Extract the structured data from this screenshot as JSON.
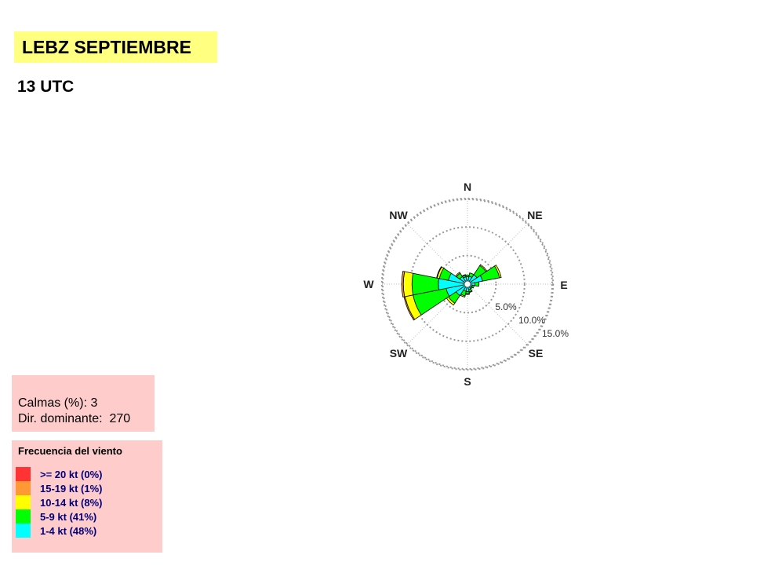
{
  "header": {
    "title": "LEBZ SEPTIEMBRE",
    "subtitle": "13 UTC"
  },
  "stats": {
    "calm_line": "Calmas (%): 3",
    "dominant_line": "Dir. dominante:  270"
  },
  "legend": {
    "title": "Frecuencia del viento",
    "items": [
      {
        "label": ">= 20 kt (0%)",
        "color": "#ff3333"
      },
      {
        "label": "15-19 kt (1%)",
        "color": "#ff9933"
      },
      {
        "label": "10-14 kt (8%)",
        "color": "#ffff00"
      },
      {
        "label": "5-9 kt (41%)",
        "color": "#00ff00"
      },
      {
        "label": "1-4 kt (48%)",
        "color": "#00ffff"
      }
    ]
  },
  "chart_data": {
    "type": "windrose",
    "directions": [
      "N",
      "NNE",
      "NE",
      "ENE",
      "E",
      "ESE",
      "SE",
      "SSE",
      "S",
      "SSW",
      "SW",
      "WSW",
      "W",
      "WNW",
      "NW",
      "NNW"
    ],
    "direction_angles": [
      0,
      22.5,
      45,
      67.5,
      90,
      112.5,
      135,
      157.5,
      180,
      202.5,
      225,
      247.5,
      270,
      292.5,
      315,
      337.5
    ],
    "compass_labels": [
      {
        "label": "N",
        "angle": 0
      },
      {
        "label": "NE",
        "angle": 45
      },
      {
        "label": "E",
        "angle": 90
      },
      {
        "label": "SE",
        "angle": 135
      },
      {
        "label": "S",
        "angle": 180
      },
      {
        "label": "SW",
        "angle": 225
      },
      {
        "label": "W",
        "angle": 270
      },
      {
        "label": "NW",
        "angle": 315
      }
    ],
    "rings": [
      {
        "value": 5,
        "label": "5.0%"
      },
      {
        "value": 10,
        "label": "10.0%"
      },
      {
        "value": 15,
        "label": "15.0%"
      }
    ],
    "series": [
      {
        "name": "1-4 kt",
        "color": "#00ffff",
        "values": [
          1.3,
          1.4,
          2.0,
          2.7,
          1.3,
          0.9,
          0.8,
          1.0,
          1.3,
          1.2,
          2.4,
          3.8,
          5.1,
          3.4,
          1.6,
          1.3
        ]
      },
      {
        "name": "5-9 kt",
        "color": "#00ff00",
        "values": [
          0.3,
          0.6,
          1.9,
          3.0,
          0.7,
          0.3,
          0.2,
          0.4,
          0.4,
          0.9,
          1.6,
          5.9,
          4.6,
          1.6,
          0.7,
          0.3
        ]
      },
      {
        "name": "10-14 kt",
        "color": "#ffff00",
        "values": [
          0.0,
          0.0,
          0.2,
          0.3,
          0.0,
          0.0,
          0.0,
          0.1,
          0.1,
          0.2,
          0.4,
          1.4,
          1.5,
          0.4,
          0.2,
          0.1
        ]
      },
      {
        "name": "15-19 kt",
        "color": "#ff9933",
        "values": [
          0,
          0,
          0,
          0,
          0,
          0,
          0,
          0,
          0,
          0,
          0,
          0.2,
          0.3,
          0.1,
          0,
          0
        ]
      },
      {
        "name": ">= 20 kt",
        "color": "#ff3333",
        "values": [
          0,
          0,
          0,
          0,
          0,
          0,
          0,
          0,
          0,
          0,
          0,
          0,
          0,
          0,
          0,
          0
        ]
      }
    ]
  }
}
